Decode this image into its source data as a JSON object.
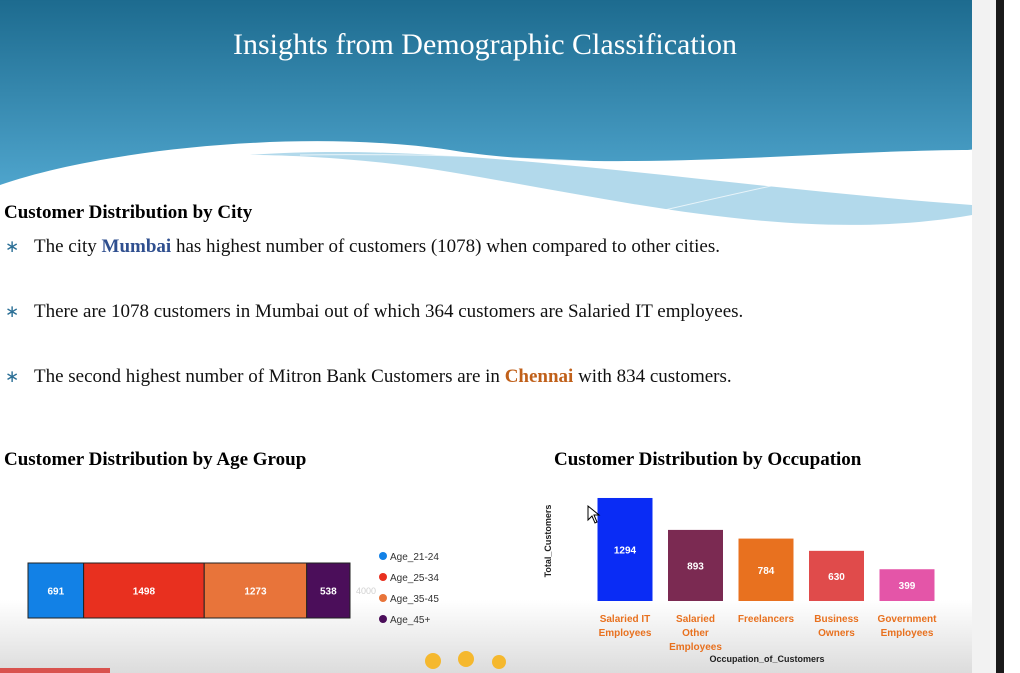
{
  "title": "Insights from Demographic Classification",
  "city_section": {
    "heading": "Customer Distribution by City",
    "bullets": [
      [
        {
          "text": "The city "
        },
        {
          "text": "Mumbai",
          "color": "#2f4f8f"
        },
        {
          "text": " has highest number of customers (1078) when compared to other cities."
        }
      ],
      [
        {
          "text": "There are 1078 customers in Mumbai out of which 364 customers are Salaried IT employees."
        }
      ],
      [
        {
          "text": "The second highest number of Mitron Bank Customers are in "
        },
        {
          "text": "Chennai",
          "color": "#c0601a"
        },
        {
          "text": " with 834 customers."
        }
      ]
    ]
  },
  "chart_data": [
    {
      "type": "stacked-bar-h",
      "title": "Customer Distribution by Age Group",
      "series": [
        {
          "name": "Age_21-24",
          "color": "#1281e6",
          "values": [
            691
          ]
        },
        {
          "name": "Age_25-34",
          "color": "#e8301f",
          "values": [
            1498
          ]
        },
        {
          "name": "Age_35-45",
          "color": "#e8743a",
          "values": [
            1273
          ]
        },
        {
          "name": "Age_45+",
          "color": "#4b0e5a",
          "values": [
            538
          ]
        }
      ],
      "xlim": [
        0,
        4000
      ],
      "xticks": [
        4000
      ]
    },
    {
      "type": "bar",
      "title": "Customer Distribution by Occupation",
      "x_label": "Occupation_of_Customers",
      "y_label": "Total_Customers",
      "categories": [
        "Salaried IT Employees",
        "Salaried Other Employees",
        "Freelancers",
        "Business Owners",
        "Government Employees"
      ],
      "values": [
        1294,
        893,
        784,
        630,
        399
      ],
      "colors": [
        "#0a2cf5",
        "#7b2a52",
        "#e8711f",
        "#e04b4b",
        "#e455a8"
      ],
      "ylim": [
        0,
        1300
      ]
    }
  ]
}
